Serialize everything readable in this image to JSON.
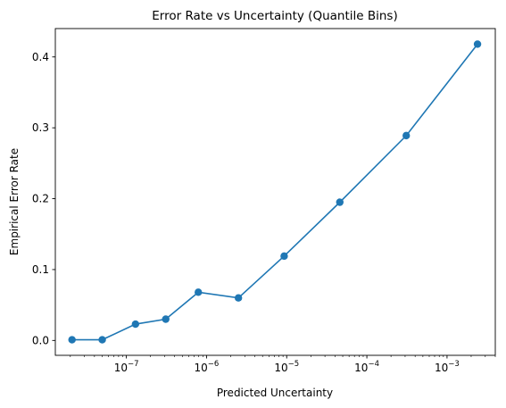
{
  "chart_data": {
    "type": "line",
    "title": "Error Rate vs Uncertainty (Quantile Bins)",
    "xlabel": "Predicted Uncertainty",
    "ylabel": "Empirical Error Rate",
    "xscale": "log",
    "xlim": [
      1.3e-08,
      0.004
    ],
    "ylim": [
      -0.021,
      0.44
    ],
    "grid": false,
    "x_ticks": [
      {
        "value": 1e-07,
        "base": "10",
        "exp": "−7"
      },
      {
        "value": 1e-06,
        "base": "10",
        "exp": "−6"
      },
      {
        "value": 1e-05,
        "base": "10",
        "exp": "−5"
      },
      {
        "value": 0.0001,
        "base": "10",
        "exp": "−4"
      },
      {
        "value": 0.001,
        "base": "10",
        "exp": "−3"
      }
    ],
    "y_ticks": [
      {
        "value": 0.0,
        "label": "0.0"
      },
      {
        "value": 0.1,
        "label": "0.1"
      },
      {
        "value": 0.2,
        "label": "0.2"
      },
      {
        "value": 0.3,
        "label": "0.3"
      },
      {
        "value": 0.4,
        "label": "0.4"
      }
    ],
    "series": [
      {
        "color": "#1f77b4",
        "marker": "circle",
        "x": [
          2.1e-08,
          5e-08,
          1.3e-07,
          3.1e-07,
          7.9e-07,
          2.5e-06,
          9.3e-06,
          4.6e-05,
          0.00031,
          0.0024
        ],
        "y": [
          0.001,
          0.001,
          0.023,
          0.03,
          0.068,
          0.06,
          0.119,
          0.195,
          0.289,
          0.418
        ]
      }
    ]
  }
}
